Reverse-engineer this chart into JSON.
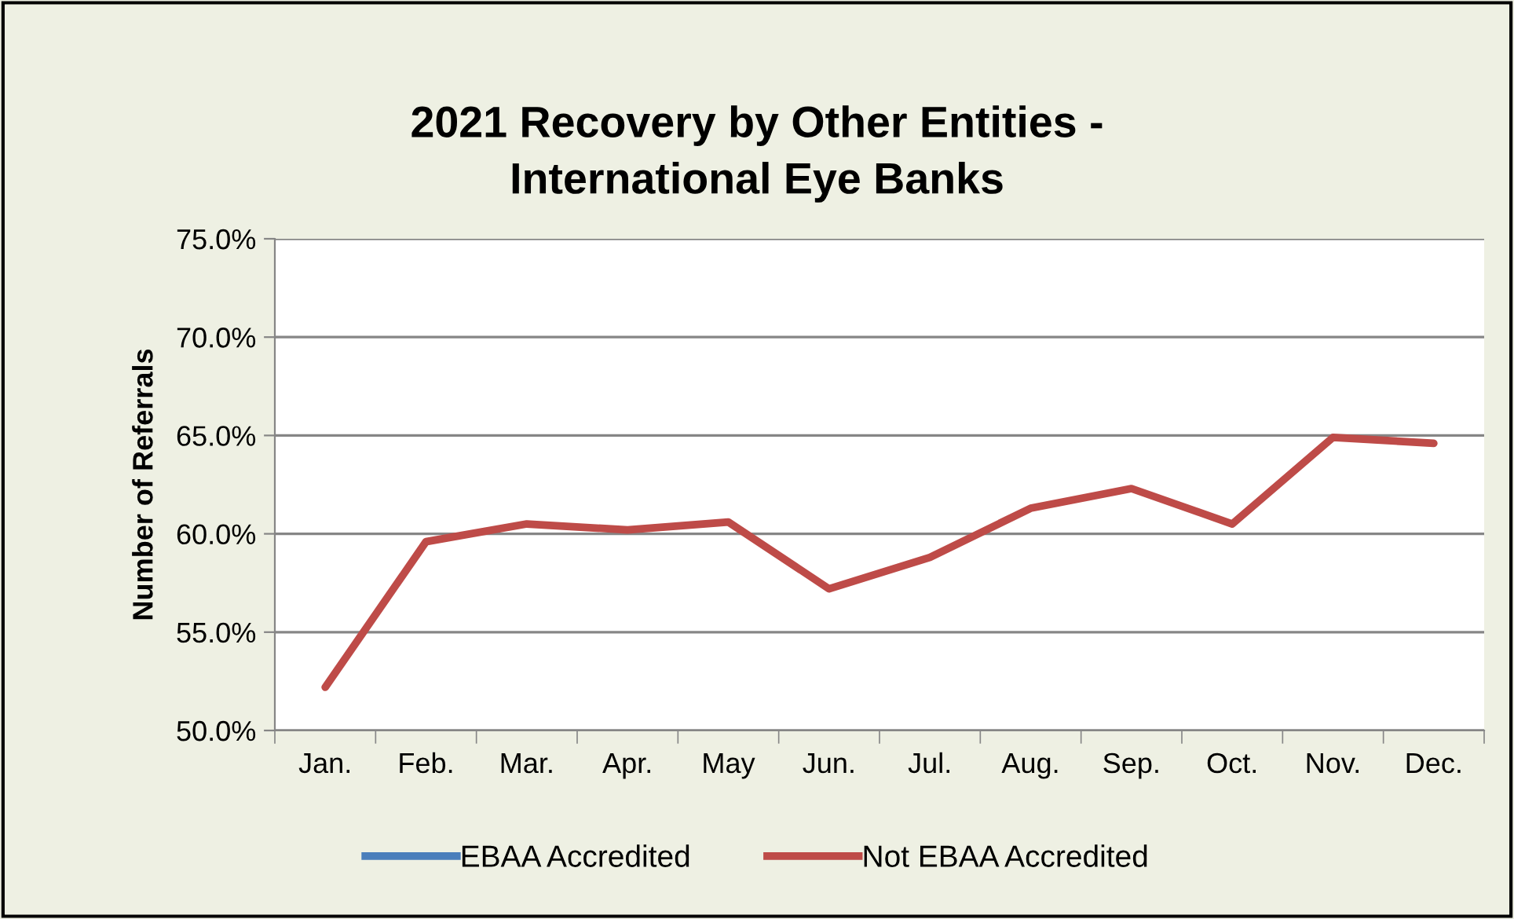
{
  "chart_data": {
    "type": "line",
    "title": "2021 Recovery by Other Entities -\nInternational Eye Banks",
    "ylabel": "Number of Referrals",
    "categories": [
      "Jan.",
      "Feb.",
      "Mar.",
      "Apr.",
      "May",
      "Jun.",
      "Jul.",
      "Aug.",
      "Sep.",
      "Oct.",
      "Nov.",
      "Dec."
    ],
    "series": [
      {
        "name": "EBAA Accredited",
        "color": "#4a7ebb",
        "values": [
          null,
          null,
          null,
          null,
          null,
          null,
          null,
          null,
          null,
          null,
          null,
          null
        ]
      },
      {
        "name": "Not EBAA Accredited",
        "color": "#be4b48",
        "values": [
          52.2,
          59.6,
          60.5,
          60.2,
          60.6,
          57.2,
          58.8,
          61.3,
          62.3,
          60.5,
          64.9,
          64.6
        ]
      }
    ],
    "ylim": [
      50,
      75
    ],
    "yticks": [
      {
        "value": 50,
        "label": "50.0%"
      },
      {
        "value": 55,
        "label": "55.0%"
      },
      {
        "value": 60,
        "label": "60.0%"
      },
      {
        "value": 65,
        "label": "65.0%"
      },
      {
        "value": 70,
        "label": "70.0%"
      },
      {
        "value": 75,
        "label": "75.0%"
      }
    ],
    "grid": "y",
    "legend": "bottom",
    "marker": "none",
    "line_style": "solid"
  }
}
